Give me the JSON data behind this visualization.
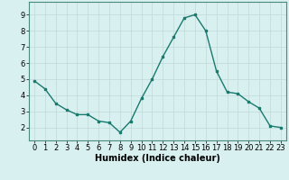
{
  "x": [
    0,
    1,
    2,
    3,
    4,
    5,
    6,
    7,
    8,
    9,
    10,
    11,
    12,
    13,
    14,
    15,
    16,
    17,
    18,
    19,
    20,
    21,
    22,
    23
  ],
  "y": [
    4.9,
    4.4,
    3.5,
    3.1,
    2.8,
    2.8,
    2.4,
    2.3,
    1.7,
    2.4,
    3.8,
    5.0,
    6.4,
    7.6,
    8.8,
    9.0,
    8.0,
    5.5,
    4.2,
    4.1,
    3.6,
    3.2,
    2.1,
    2.0
  ],
  "line_color": "#1a7a6e",
  "marker": "s",
  "marker_size": 2.0,
  "xlabel": "Humidex (Indice chaleur)",
  "xlim": [
    -0.5,
    23.5
  ],
  "ylim": [
    1.2,
    9.8
  ],
  "bg_color": "#d8f0f0",
  "grid_color": "#c0d8d8",
  "yticks": [
    2,
    3,
    4,
    5,
    6,
    7,
    8,
    9
  ],
  "xticks": [
    0,
    1,
    2,
    3,
    4,
    5,
    6,
    7,
    8,
    9,
    10,
    11,
    12,
    13,
    14,
    15,
    16,
    17,
    18,
    19,
    20,
    21,
    22,
    23
  ],
  "linewidth": 1.0,
  "xlabel_fontsize": 7.0,
  "tick_fontsize": 6.0
}
